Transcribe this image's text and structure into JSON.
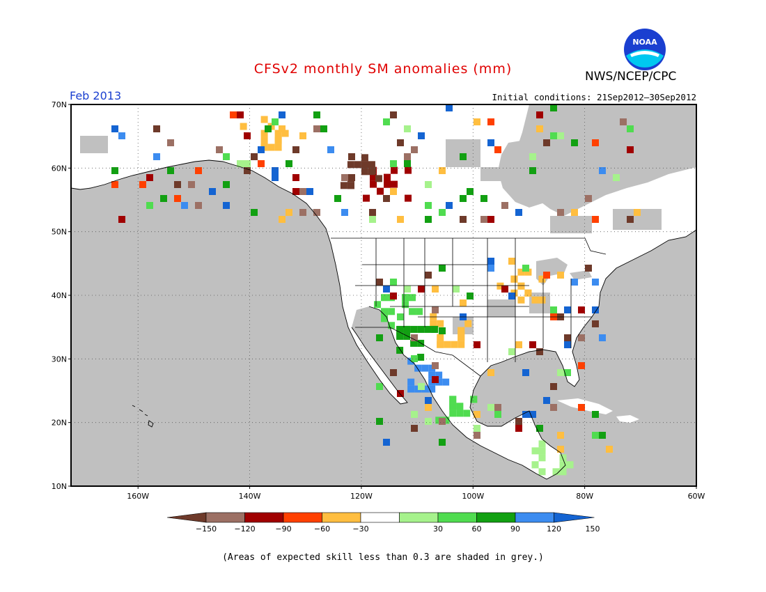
{
  "title": "CFSv2 monthly SM anomalies (mm)",
  "organization": "NWS/NCEP/CPC",
  "logo_text": "NOAA",
  "valid_month": "Feb 2013",
  "initial_conditions": "Initial conditions: 21Sep2012–30Sep2012",
  "footnote": "(Areas of expected skill less than 0.3 are shaded in grey.)",
  "map": {
    "lon_range": [
      -172,
      -60
    ],
    "lat_range": [
      10,
      70
    ],
    "lon_ticks": [
      "160W",
      "140W",
      "120W",
      "100W",
      "80W",
      "60W"
    ],
    "lat_ticks": [
      "70N",
      "60N",
      "50N",
      "40N",
      "30N",
      "20N",
      "10N"
    ],
    "gridlines": "dotted",
    "colors": {
      "ocean_low_skill": "#c0c0c0",
      "land_no_anomaly": "#ffffff"
    }
  },
  "legend": {
    "tick_labels": [
      "−150",
      "−120",
      "−90",
      "−60",
      "−30",
      "30",
      "60",
      "90",
      "120",
      "150"
    ],
    "bins": [
      {
        "range": "< -150",
        "color": "#6e3a2a"
      },
      {
        "range": "-150 to -120",
        "color": "#9c7064"
      },
      {
        "range": "-120 to -90",
        "color": "#a00000"
      },
      {
        "range": "-90 to -60",
        "color": "#ff4000"
      },
      {
        "range": "-60 to -30",
        "color": "#ffbe40"
      },
      {
        "range": "-30 to 30",
        "color": "#ffffff"
      },
      {
        "range": "30 to 60",
        "color": "#a6f28c"
      },
      {
        "range": "60 to 90",
        "color": "#50dc50"
      },
      {
        "range": "90 to 120",
        "color": "#12a012"
      },
      {
        "range": "120 to 150",
        "color": "#3c8cf0"
      },
      {
        "range": "> 150",
        "color": "#1464d2"
      }
    ]
  },
  "anomaly_patches": [
    {
      "name": "canadian-prairie-dry",
      "lon": -116,
      "lat": 58,
      "color": "#a00000"
    },
    {
      "name": "alberta-dry",
      "lon": -120,
      "lat": 60,
      "color": "#6e3a2a"
    },
    {
      "name": "midwest-dry",
      "lon": -92,
      "lat": 42,
      "color": "#ffbe40"
    },
    {
      "name": "plains-dry",
      "lon": -104,
      "lat": 35,
      "color": "#ffbe40"
    },
    {
      "name": "southwest-wet",
      "lon": -110,
      "lat": 33,
      "color": "#12a012"
    },
    {
      "name": "mexico-wet",
      "lon": -108,
      "lat": 28,
      "color": "#3c8cf0"
    },
    {
      "name": "yukon-mixed",
      "lon": -138,
      "lat": 66,
      "color": "#ffbe40"
    },
    {
      "name": "rockies-wet",
      "lon": -114,
      "lat": 38,
      "color": "#50dc50"
    },
    {
      "name": "mexico-interior",
      "lon": -103,
      "lat": 22,
      "color": "#50dc50"
    },
    {
      "name": "central-america",
      "lon": -87,
      "lat": 15,
      "color": "#a6f28c"
    }
  ]
}
